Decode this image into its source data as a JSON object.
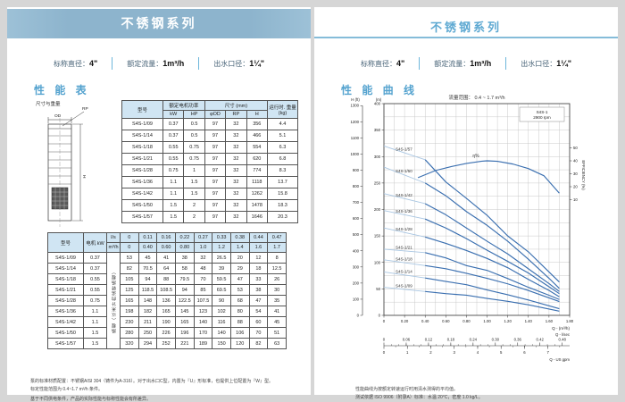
{
  "colors": {
    "banner_blue": "#8db4cd",
    "title_blue": "#5ea9d2",
    "table_header_blue": "#d0e5f3",
    "curve_blue": "#3a6fb0",
    "curve_light_blue": "#a9c6e2",
    "grid_gray": "#c4c4c4"
  },
  "left": {
    "banner": "不锈钢系列",
    "section_title": "性 能 表",
    "drawing": {
      "caption": "尺寸与重量",
      "od_label": "OD",
      "rp_label": "RP",
      "h_label": "H"
    },
    "dim_table": {
      "col_model": "型号",
      "col_power": "额定电机功率",
      "col_size": "尺寸 (mm)",
      "col_weight": "运行时. 重量 (kg)",
      "sub_headers": [
        "kW",
        "HP",
        "φOD",
        "RP",
        "H"
      ],
      "rows": [
        [
          "S4S-1/09",
          "0.37",
          "0.5",
          "97",
          "32",
          "356",
          "4.4"
        ],
        [
          "S4S-1/14",
          "0.37",
          "0.5",
          "97",
          "32",
          "466",
          "5.1"
        ],
        [
          "S4S-1/18",
          "0.55",
          "0.75",
          "97",
          "32",
          "554",
          "6.3"
        ],
        [
          "S4S-1/21",
          "0.55",
          "0.75",
          "97",
          "32",
          "620",
          "6.8"
        ],
        [
          "S4S-1/28",
          "0.75",
          "1",
          "97",
          "32",
          "774",
          "8.3"
        ],
        [
          "S4S-1/36",
          "1.1",
          "1.5",
          "97",
          "32",
          "1118",
          "13.7"
        ],
        [
          "S4S-1/42",
          "1.1",
          "1.5",
          "97",
          "32",
          "1262",
          "15.8"
        ],
        [
          "S4S-1/50",
          "1.5",
          "2",
          "97",
          "32",
          "1478",
          "18.3"
        ],
        [
          "S4S-1/57",
          "1.5",
          "2",
          "97",
          "32",
          "1646",
          "20.3"
        ]
      ]
    },
    "head_table": {
      "col_model": "型号",
      "col_motor": "电机 kW",
      "unit_ls": "l/s",
      "unit_m3h": "m³/h",
      "rotated_label": "扬程（以米计的运转扬程）",
      "ls_values": [
        "0",
        "0.11",
        "0.16",
        "0.22",
        "0.27",
        "0.33",
        "0.38",
        "0.44",
        "0.47"
      ],
      "m3h_values": [
        "0",
        "0.40",
        "0.60",
        "0.80",
        "1.0",
        "1.2",
        "1.4",
        "1.6",
        "1.7"
      ],
      "rows": [
        {
          "model": "S4S-1/09",
          "kw": "0.37",
          "heads": [
            "53",
            "45",
            "41",
            "38",
            "32",
            "26.5",
            "20",
            "12",
            "8"
          ]
        },
        {
          "model": "S4S-1/14",
          "kw": "0.37",
          "heads": [
            "82",
            "70.5",
            "64",
            "58",
            "48",
            "39",
            "29",
            "18",
            "12.5"
          ]
        },
        {
          "model": "S4S-1/18",
          "kw": "0.55",
          "heads": [
            "105",
            "94",
            "88",
            "79.5",
            "70",
            "59.5",
            "47",
            "33",
            "26"
          ]
        },
        {
          "model": "S4S-1/21",
          "kw": "0.55",
          "heads": [
            "125",
            "118.5",
            "108.5",
            "94",
            "85",
            "69.5",
            "53",
            "38",
            "30"
          ]
        },
        {
          "model": "S4S-1/28",
          "kw": "0.75",
          "heads": [
            "165",
            "148",
            "136",
            "122.5",
            "107.5",
            "90",
            "68",
            "47",
            "35"
          ]
        },
        {
          "model": "S4S-1/36",
          "kw": "1.1",
          "heads": [
            "198",
            "182",
            "165",
            "145",
            "123",
            "102",
            "80",
            "54",
            "41"
          ]
        },
        {
          "model": "S4S-1/42",
          "kw": "1.1",
          "heads": [
            "230",
            "211",
            "190",
            "165",
            "140",
            "116",
            "88",
            "60",
            "45"
          ]
        },
        {
          "model": "S4S-1/50",
          "kw": "1.5",
          "heads": [
            "280",
            "250",
            "226",
            "196",
            "170",
            "140",
            "106",
            "70",
            "51"
          ]
        },
        {
          "model": "S4S-1/57",
          "kw": "1.5",
          "heads": [
            "320",
            "294",
            "252",
            "221",
            "189",
            "150",
            "120",
            "82",
            "63"
          ]
        }
      ]
    },
    "footnotes": [
      "泵的标准材质配置：不锈钢AISI 304（铸件为A-316）。对于出水口C型，内置为『U』形标准，也提供上位配置为『W』型。",
      "标定性能范围为 0.4~1.7 m³/h 条件。",
      "基于不同供电条件，产品的实际性能与标称性能会有所差异。"
    ]
  },
  "right": {
    "banner": "不锈钢系列",
    "section_title": "性 能 曲 线",
    "footnotes": [
      "性能曲线为按额定转速运行时用清水测得的平均值。",
      "测试依据 ISO 9906（附录A）标准：水温 20°C，密度 1.0 kg/L。"
    ]
  },
  "specs": [
    {
      "label": "标称直径：",
      "value": "4\""
    },
    {
      "label": "额定流量：",
      "value": "1m³/h"
    },
    {
      "label": "出水口径：",
      "value": "1¼\""
    }
  ],
  "chart_data": {
    "type": "line",
    "title": "流量范围：  0.4 ~ 1.7 m³/h",
    "legend": [
      "S4S-1",
      "2900 rpm"
    ],
    "x_axis": {
      "label": "Q - (m³/h)",
      "min": 0,
      "max": 1.8,
      "tick_labels": [
        "0",
        "0.20",
        "0.40",
        "0.60",
        "0.80",
        "1.00",
        "1.20",
        "1.40",
        "1.60",
        "1.80"
      ]
    },
    "y_axis_m": {
      "label": "(m)",
      "min": 0,
      "max": 400,
      "ticks": [
        0,
        50,
        100,
        150,
        200,
        250,
        300,
        350,
        400
      ]
    },
    "y_axis_ft": {
      "label": "H (ft)",
      "min": 0,
      "max": 1300,
      "ticks": [
        0,
        100,
        200,
        300,
        400,
        500,
        600,
        700,
        800,
        900,
        1000,
        1100,
        1200,
        1300
      ]
    },
    "eff_axis": {
      "label": "EFFICIENCY (%)",
      "ticks": [
        10,
        20,
        30,
        40,
        50
      ]
    },
    "sub_axis_ls": {
      "label": "Q - l/sec",
      "tick_labels": [
        "0",
        "0.06",
        "0.12",
        "0.18",
        "0.24",
        "0.30",
        "0.36",
        "0.42",
        "0.48"
      ]
    },
    "sub_axis_gpm": {
      "label": "Q - US gpm",
      "tick_labels": [
        "0",
        "1",
        "2",
        "3",
        "4",
        "5",
        "6",
        "7"
      ]
    },
    "x": [
      0,
      0.4,
      0.6,
      0.8,
      1.0,
      1.2,
      1.4,
      1.6,
      1.7
    ],
    "series": [
      {
        "name": "S4S-1/57",
        "values": [
          320,
          294,
          252,
          221,
          189,
          150,
          120,
          82,
          63
        ]
      },
      {
        "name": "S4S-1/50",
        "values": [
          280,
          250,
          226,
          196,
          170,
          140,
          106,
          70,
          51
        ]
      },
      {
        "name": "S4S-1/42",
        "values": [
          230,
          211,
          190,
          165,
          140,
          116,
          88,
          60,
          45
        ]
      },
      {
        "name": "S4S-1/36",
        "values": [
          198,
          182,
          165,
          145,
          123,
          102,
          80,
          54,
          41
        ]
      },
      {
        "name": "S4S-1/28",
        "values": [
          165,
          148,
          136,
          122.5,
          107.5,
          90,
          68,
          47,
          35
        ]
      },
      {
        "name": "S4S-1/21",
        "values": [
          125,
          118.5,
          108.5,
          94,
          85,
          69.5,
          53,
          38,
          30
        ]
      },
      {
        "name": "S4S-1/18",
        "values": [
          105,
          94,
          88,
          79.5,
          70,
          59.5,
          47,
          33,
          26
        ]
      },
      {
        "name": "S4S-1/14",
        "values": [
          82,
          70.5,
          64,
          58,
          48,
          39,
          29,
          18,
          12.5
        ]
      },
      {
        "name": "S4S-1/09",
        "values": [
          53,
          45,
          41,
          38,
          32,
          26.5,
          20,
          12,
          8
        ]
      }
    ],
    "efficiency_curve": {
      "name": "η%",
      "x": [
        0.33,
        0.5,
        0.65,
        0.8,
        0.95,
        1.0,
        1.1,
        1.25,
        1.4,
        1.55,
        1.7
      ],
      "values": [
        27,
        32.5,
        35.5,
        38,
        39.7,
        40,
        39.6,
        37.5,
        34,
        28.5,
        15
      ]
    },
    "range_split": 0.4
  }
}
